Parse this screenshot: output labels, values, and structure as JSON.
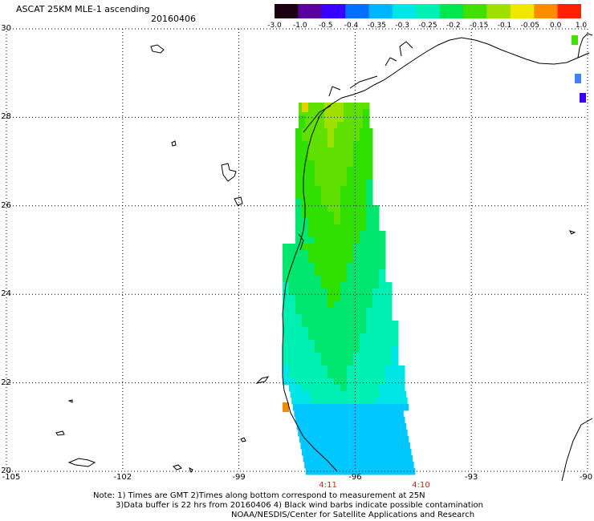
{
  "title": "ASCAT 25KM MLE-1 ascending",
  "date": "20160406",
  "colorbar": {
    "labels": [
      "-3.0",
      "-1.0",
      "-0.5",
      "-0.4",
      "-0.35",
      "-0.3",
      "-0.25",
      "-0.2",
      "-0.15",
      "-0.1",
      "-0.05",
      "0.0",
      "1.0"
    ],
    "colors": [
      "#1a0010",
      "#5a00a0",
      "#3a00ff",
      "#0070ff",
      "#00b4ff",
      "#00e6e6",
      "#00f0b4",
      "#00e650",
      "#40e000",
      "#a0e000",
      "#f0e600",
      "#ff8c00",
      "#ff2000"
    ]
  },
  "lat_labels": [
    "30",
    "28",
    "26",
    "24",
    "22",
    "20"
  ],
  "lon_labels": [
    "-105",
    "-102",
    "-99",
    "-96",
    "-93",
    "-90"
  ],
  "time_labels": [
    {
      "text": "4:11",
      "lon": -96.7
    },
    {
      "text": "4:10",
      "lon": -94.3
    }
  ],
  "notes": [
    "Note: 1) Times are GMT 2)Times along bottom correspond to measurement at 25N",
    "3)Data buffer is 22 hrs from 20160406 4) Black wind barbs indicate possible contamination",
    "NOAA/NESDIS/Center for Satellite Applications and Research"
  ]
}
